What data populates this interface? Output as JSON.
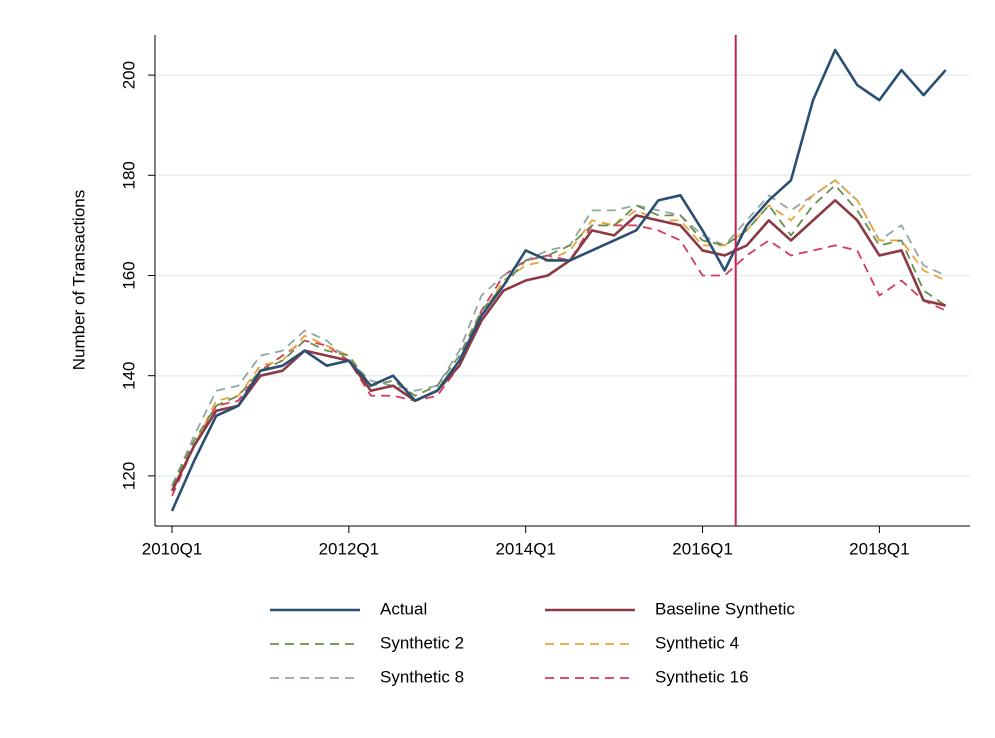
{
  "chart_data": {
    "type": "line",
    "ylabel": "Number of Transactions",
    "categories": [
      "2010Q1",
      null,
      null,
      null,
      null,
      null,
      null,
      null,
      "2012Q1",
      null,
      null,
      null,
      null,
      null,
      null,
      null,
      "2014Q1",
      null,
      null,
      null,
      null,
      null,
      null,
      null,
      "2016Q1",
      null,
      null,
      null,
      null,
      null,
      null,
      null,
      "2018Q1",
      null,
      null,
      null
    ],
    "xlim": [
      -0.77,
      36.1
    ],
    "ylim": [
      110,
      208
    ],
    "yticks": [
      120,
      140,
      160,
      180,
      200
    ],
    "grid": true,
    "vline": 25.5,
    "vline_color": "#c0244e",
    "legend": "bottom",
    "series": [
      {
        "name": "Actual",
        "color": "#2b4f73",
        "style": "solid",
        "values": [
          113,
          123,
          132,
          134,
          141,
          142,
          145,
          142,
          143,
          138,
          140,
          135,
          137,
          143,
          152,
          158,
          165,
          163,
          163,
          165,
          167,
          169,
          175,
          176,
          169,
          161,
          170,
          175,
          179,
          195,
          205,
          198,
          195,
          201,
          196,
          201
        ]
      },
      {
        "name": "Baseline Synthetic",
        "color": "#8b3a45",
        "style": "solid",
        "values": [
          117,
          126,
          133,
          134,
          140,
          141,
          145,
          144,
          143,
          137,
          138,
          135,
          137,
          142,
          151,
          157,
          159,
          160,
          163,
          169,
          168,
          172,
          171,
          170,
          165,
          164,
          166,
          171,
          167,
          171,
          175,
          171,
          164,
          165,
          155,
          154
        ]
      },
      {
        "name": "Synthetic 2",
        "color": "#6b8e4e",
        "style": "dashed",
        "values": [
          118,
          127,
          134,
          136,
          141,
          143,
          147,
          145,
          144,
          138,
          139,
          136,
          138,
          144,
          153,
          158,
          163,
          164,
          166,
          170,
          170,
          174,
          172,
          172,
          167,
          166,
          169,
          174,
          168,
          174,
          178,
          173,
          166,
          167,
          157,
          154
        ]
      },
      {
        "name": "Synthetic 4",
        "color": "#e8a53a",
        "style": "dashed",
        "values": [
          117,
          126,
          135,
          136,
          142,
          143,
          148,
          146,
          144,
          137,
          138,
          135,
          137,
          143,
          152,
          159,
          162,
          163,
          165,
          171,
          170,
          173,
          171,
          171,
          166,
          166,
          169,
          174,
          171,
          176,
          179,
          175,
          167,
          167,
          161,
          159
        ]
      },
      {
        "name": "Synthetic 8",
        "color": "#8fa8a0",
        "style": "dashed",
        "values": [
          118,
          128,
          137,
          138,
          144,
          145,
          149,
          147,
          143,
          139,
          138,
          137,
          138,
          145,
          156,
          160,
          163,
          165,
          166,
          173,
          173,
          174,
          173,
          172,
          168,
          166,
          171,
          176,
          173,
          176,
          179,
          175,
          167,
          170,
          162,
          160
        ]
      },
      {
        "name": "Synthetic 16",
        "color": "#d63a5c",
        "style": "dashed",
        "values": [
          116,
          126,
          134,
          135,
          141,
          144,
          147,
          146,
          143,
          136,
          136,
          135,
          136,
          142,
          153,
          160,
          163,
          164,
          163,
          170,
          170,
          170,
          169,
          167,
          160,
          160,
          164,
          167,
          164,
          165,
          166,
          165,
          156,
          159,
          155,
          153
        ]
      }
    ]
  }
}
